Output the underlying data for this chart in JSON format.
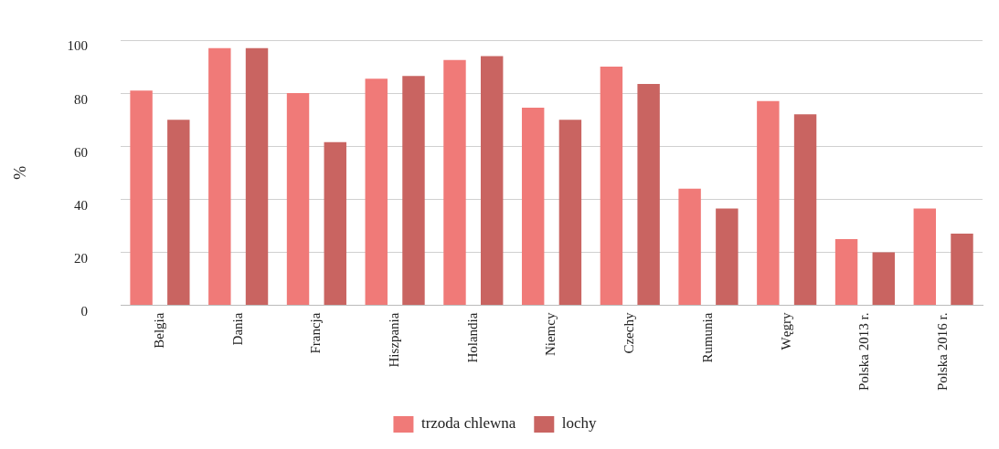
{
  "chart_data": {
    "type": "bar",
    "ylabel": "%",
    "categories": [
      "Belgia",
      "Dania",
      "Francja",
      "Hiszpania",
      "Holandia",
      "Niemcy",
      "Czechy",
      "Rumunia",
      "Węgry",
      "Polska 2013 r.",
      "Polska 2016 r."
    ],
    "series": [
      {
        "name": "trzoda chlewna",
        "color": "#f07a78",
        "values": [
          81,
          97,
          80,
          85.5,
          92.5,
          74.5,
          90,
          44,
          77,
          25,
          36.5
        ]
      },
      {
        "name": "lochy",
        "color": "#c96461",
        "values": [
          70,
          97,
          61.5,
          86.5,
          94,
          70,
          83.5,
          36.5,
          72,
          20,
          27
        ]
      }
    ],
    "ylim": [
      0,
      100
    ],
    "yticks": [
      0,
      20,
      40,
      60,
      80,
      100
    ],
    "grid": "y",
    "legend": "bottom"
  }
}
